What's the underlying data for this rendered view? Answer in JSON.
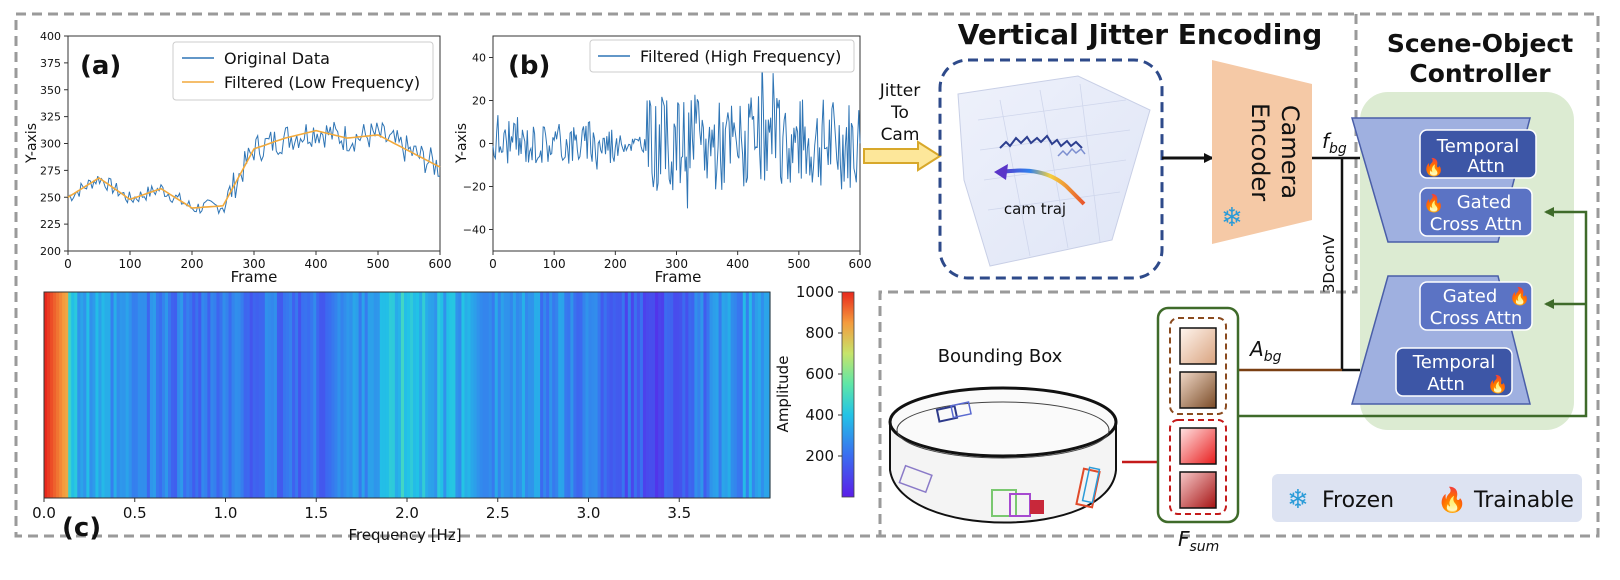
{
  "panel_a": {
    "label": "(a)",
    "legend": [
      "Original Data",
      "Filtered (Low Frequency)"
    ],
    "xlabel": "Frame",
    "ylabel": "Y-axis",
    "yticks": [
      "200",
      "225",
      "250",
      "275",
      "300",
      "325",
      "350",
      "375",
      "400"
    ],
    "xticks": [
      "0",
      "100",
      "200",
      "300",
      "400",
      "500",
      "600"
    ],
    "colors": {
      "original": "#2f75b5",
      "filtered": "#f2a93b"
    }
  },
  "panel_b": {
    "label": "(b)",
    "legend": [
      "Filtered (High Frequency)"
    ],
    "xlabel": "Frame",
    "ylabel": "Y-axis",
    "yticks": [
      "40",
      "20",
      "0",
      "−20",
      "−40"
    ],
    "xticks": [
      "0",
      "100",
      "200",
      "300",
      "400",
      "500",
      "600"
    ],
    "color": "#2f75b5"
  },
  "panel_c": {
    "label": "(c)",
    "xlabel": "Frequency [Hz]",
    "xticks": [
      "0.0",
      "0.5",
      "1.0",
      "1.5",
      "2.0",
      "2.5",
      "3.0",
      "3.5"
    ],
    "colorbar_label": "Amplitude",
    "colorbar_ticks": [
      "1000",
      "800",
      "600",
      "400",
      "200"
    ]
  },
  "chart_data": [
    {
      "type": "line",
      "title": "",
      "xlabel": "Frame",
      "ylabel": "Y-axis",
      "xlim": [
        0,
        600
      ],
      "ylim": [
        200,
        400
      ],
      "series": [
        {
          "name": "Original Data",
          "x": [
            0,
            50,
            100,
            150,
            200,
            250,
            300,
            350,
            400,
            450,
            500,
            550,
            600
          ],
          "values": [
            250,
            265,
            255,
            260,
            240,
            245,
            290,
            300,
            305,
            300,
            305,
            290,
            275
          ]
        },
        {
          "name": "Filtered (Low Frequency)",
          "x": [
            0,
            50,
            100,
            150,
            200,
            250,
            300,
            350,
            400,
            450,
            500,
            550,
            600
          ],
          "values": [
            250,
            268,
            248,
            258,
            240,
            242,
            295,
            305,
            312,
            305,
            308,
            293,
            278
          ]
        }
      ]
    },
    {
      "type": "line",
      "title": "",
      "xlabel": "Frame",
      "ylabel": "Y-axis",
      "xlim": [
        0,
        600
      ],
      "ylim": [
        -50,
        50
      ],
      "series": [
        {
          "name": "Filtered (High Frequency)",
          "x": [
            0,
            50,
            100,
            150,
            200,
            250,
            300,
            350,
            400,
            450,
            500,
            550,
            600
          ],
          "values": [
            0,
            5,
            -5,
            3,
            0,
            10,
            -15,
            20,
            -20,
            15,
            -25,
            10,
            0
          ]
        }
      ]
    },
    {
      "type": "heatmap",
      "title": "",
      "xlabel": "Frequency [Hz]",
      "xlim": [
        0.0,
        4.0
      ],
      "colorbar": {
        "label": "Amplitude",
        "range": [
          0,
          1000
        ]
      },
      "x": [
        0.0,
        0.05,
        0.1,
        0.15,
        0.5,
        1.0,
        1.5,
        2.0,
        2.05,
        2.5,
        3.0,
        3.35,
        3.5,
        3.9
      ],
      "values": [
        1000,
        900,
        700,
        350,
        250,
        220,
        200,
        420,
        380,
        300,
        240,
        120,
        180,
        320
      ]
    }
  ],
  "diagram": {
    "jitter_to_cam": [
      "Jitter",
      "To",
      "Cam"
    ],
    "vje_title": "Vertical Jitter Encoding",
    "cam_traj": "cam traj",
    "camera_encoder": [
      "Camera",
      "Encoder"
    ],
    "f_bg": "f",
    "f_bg_sub": "bg",
    "a_bg": "A",
    "a_bg_sub": "bg",
    "conv": "3DconV",
    "soc_title": [
      "Scene-Object",
      "Controller"
    ],
    "block_top": [
      {
        "text": [
          "Temporal",
          "Attn"
        ],
        "fire": true
      },
      {
        "text": [
          "Gated",
          "Cross Attn"
        ],
        "fire": true
      }
    ],
    "block_bottom": [
      {
        "text": [
          "Gated",
          "Cross Attn"
        ],
        "fire": true
      },
      {
        "text": [
          "Temporal",
          "Attn"
        ],
        "fire": true
      }
    ],
    "bounding_box": "Bounding Box",
    "f_sum": "F",
    "f_sum_sub": "sum",
    "legend": {
      "frozen": "Frozen",
      "trainable": "Trainable"
    },
    "colors": {
      "encoder": "#f5c9a6",
      "block": "#5b73c4",
      "block_dark": "#3d56a6",
      "controller_bg": "#dcebd2",
      "frame": "#9a9a9a"
    }
  }
}
